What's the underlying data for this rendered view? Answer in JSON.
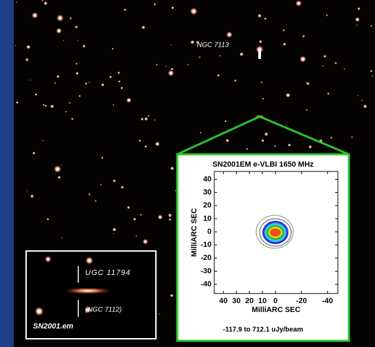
{
  "labels": {
    "galaxy_top": "NGC 7113",
    "galaxy_host": "UGC 11794",
    "galaxy_alt": "(NGC 7112)",
    "supernova": "SN2001.em"
  },
  "inset": {
    "title": "SN2001EM  e-VLBI 1650 MHz",
    "x_label": "MilliARC SEC",
    "y_label": "MilliARC SEC",
    "xlim": [
      47,
      -48
    ],
    "ylim": [
      -47,
      46
    ],
    "xticks": [
      40,
      30,
      20,
      10,
      0,
      -20,
      -40
    ],
    "yticks": [
      40,
      30,
      20,
      10,
      0,
      -10,
      -20,
      -30,
      -40
    ],
    "caption": "-117.9 to 712.1 uJy/beam"
  }
}
